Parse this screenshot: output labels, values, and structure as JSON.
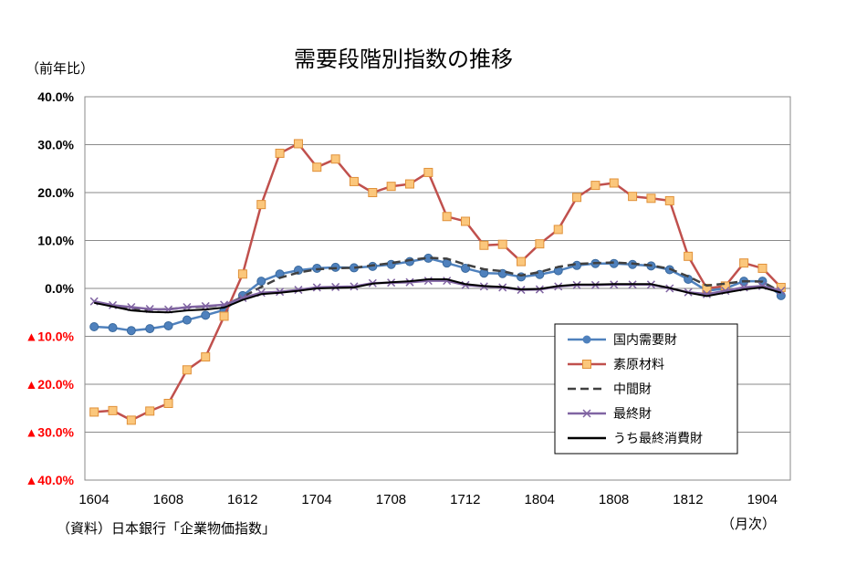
{
  "chart_data": {
    "type": "line",
    "title": "需要段階別指数の推移",
    "ylabel": "（前年比）",
    "xlabel": "（月次）",
    "source": "（資料）日本銀行「企業物価指数」",
    "ylim": [
      -40,
      40
    ],
    "y_ticks": [
      {
        "value": 40,
        "label": "40.0%"
      },
      {
        "value": 30,
        "label": "30.0%"
      },
      {
        "value": 20,
        "label": "20.0%"
      },
      {
        "value": 10,
        "label": "10.0%"
      },
      {
        "value": 0,
        "label": "0.0%"
      },
      {
        "value": -10,
        "label": "▲10.0%"
      },
      {
        "value": -20,
        "label": "▲20.0%"
      },
      {
        "value": -30,
        "label": "▲30.0%"
      },
      {
        "value": -40,
        "label": "▲40.0%"
      }
    ],
    "x_tick_labels": [
      {
        "index": 0,
        "label": "1604"
      },
      {
        "index": 4,
        "label": "1608"
      },
      {
        "index": 8,
        "label": "1612"
      },
      {
        "index": 12,
        "label": "1704"
      },
      {
        "index": 16,
        "label": "1708"
      },
      {
        "index": 20,
        "label": "1712"
      },
      {
        "index": 24,
        "label": "1804"
      },
      {
        "index": 28,
        "label": "1808"
      },
      {
        "index": 32,
        "label": "1812"
      },
      {
        "index": 36,
        "label": "1904"
      }
    ],
    "categories": [
      "1604",
      "1605",
      "1606",
      "1607",
      "1608",
      "1609",
      "1610",
      "1611",
      "1612",
      "1701",
      "1702",
      "1703",
      "1704",
      "1705",
      "1706",
      "1707",
      "1708",
      "1709",
      "1710",
      "1711",
      "1712",
      "1801",
      "1802",
      "1803",
      "1804",
      "1805",
      "1806",
      "1807",
      "1808",
      "1809",
      "1810",
      "1811",
      "1812",
      "1901",
      "1902",
      "1903",
      "1904",
      "1905"
    ],
    "grid": true,
    "legend_position": "bottom-right",
    "series": [
      {
        "name": "国内需要財",
        "color": "#4f81bd",
        "marker": "circle",
        "values": [
          -8.0,
          -8.2,
          -8.8,
          -8.4,
          -7.8,
          -6.6,
          -5.6,
          -4.5,
          -1.5,
          1.5,
          3.0,
          3.8,
          4.2,
          4.4,
          4.3,
          4.6,
          5.0,
          5.6,
          6.3,
          5.3,
          4.2,
          3.2,
          3.1,
          2.4,
          2.9,
          3.7,
          4.8,
          5.2,
          5.2,
          5.0,
          4.7,
          3.9,
          1.9,
          -0.5,
          0.0,
          1.5,
          1.5,
          -1.5
        ]
      },
      {
        "name": "素原材料",
        "color": "#c0504d",
        "marker": "square",
        "values": [
          -25.8,
          -25.5,
          -27.5,
          -25.6,
          -24.0,
          -17.0,
          -14.3,
          -5.8,
          3.0,
          17.5,
          28.2,
          30.2,
          25.3,
          27.0,
          22.3,
          20.0,
          21.3,
          21.8,
          24.2,
          15.0,
          14.0,
          9.0,
          9.2,
          5.6,
          9.3,
          12.3,
          19.0,
          21.5,
          22.0,
          19.2,
          18.8,
          18.3,
          6.7,
          0.0,
          0.5,
          5.3,
          4.2,
          0.2
        ]
      },
      {
        "name": "中間財",
        "color": "#404040",
        "marker": "dash",
        "values": [
          -2.8,
          -3.5,
          -4.2,
          -4.5,
          -4.3,
          -4.0,
          -3.8,
          -3.5,
          -1.8,
          0.3,
          2.2,
          3.3,
          4.0,
          4.2,
          4.3,
          4.8,
          5.3,
          5.9,
          6.4,
          6.2,
          5.0,
          4.0,
          3.6,
          2.7,
          3.4,
          4.5,
          5.1,
          5.3,
          5.4,
          5.2,
          4.8,
          4.1,
          2.5,
          0.6,
          1.0,
          1.5,
          1.4,
          -0.8
        ]
      },
      {
        "name": "最終財",
        "color": "#8064a2",
        "marker": "cross",
        "values": [
          -2.7,
          -3.5,
          -3.9,
          -4.3,
          -4.4,
          -3.9,
          -3.7,
          -3.4,
          -2.0,
          -0.9,
          -0.7,
          -0.3,
          0.2,
          0.3,
          0.4,
          1.1,
          1.2,
          1.3,
          1.6,
          1.6,
          0.7,
          0.4,
          0.2,
          -0.3,
          -0.2,
          0.4,
          0.7,
          0.7,
          0.8,
          0.8,
          0.8,
          0.0,
          -0.8,
          -1.2,
          -0.5,
          0.2,
          0.5,
          -0.5
        ]
      },
      {
        "name": "うち最終消費財",
        "color": "#000000",
        "marker": "none",
        "values": [
          -3.0,
          -3.8,
          -4.6,
          -4.9,
          -5.0,
          -4.6,
          -4.4,
          -4.0,
          -2.4,
          -1.2,
          -0.9,
          -0.5,
          0.0,
          0.1,
          0.2,
          1.0,
          1.3,
          1.5,
          1.9,
          1.9,
          0.9,
          0.5,
          0.3,
          -0.2,
          -0.1,
          0.5,
          0.8,
          0.8,
          0.9,
          0.9,
          0.9,
          0.1,
          -0.9,
          -1.6,
          -0.9,
          -0.2,
          0.2,
          -0.9
        ]
      }
    ]
  }
}
